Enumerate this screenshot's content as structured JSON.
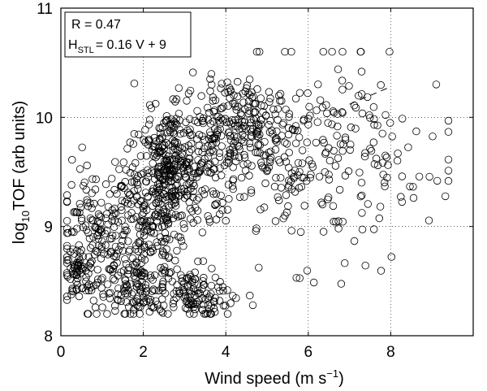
{
  "chart_data": {
    "type": "scatter",
    "xlabel": {
      "main": "Wind speed (m s",
      "superscript": "−1",
      "tail": ")"
    },
    "ylabel": {
      "prefix": "log",
      "subscript": "10",
      "main": "TOF (arb units)"
    },
    "xlim": [
      0,
      10
    ],
    "ylim": [
      8,
      11
    ],
    "xticks": [
      "0",
      "2",
      "4",
      "6",
      "8"
    ],
    "yticks": [
      "8",
      "9",
      "10",
      "11"
    ],
    "grid": true,
    "legend_placement": "top-left",
    "annotations": {
      "r_value": "R = 0.47",
      "fit_prefix": "H",
      "fit_subscript": "STL",
      "fit_eq": "= 0.16 V + 9"
    },
    "marker": "open-circle",
    "marker_color": "#000000",
    "fit_line": {
      "slope": 0.16,
      "intercept": 9,
      "x_range": [
        7.0,
        8.0
      ]
    },
    "point_clusters": [
      {
        "x_mean": 0.8,
        "x_sd": 0.45,
        "y_mean": 8.85,
        "y_sd": 0.35,
        "count": 170
      },
      {
        "x_mean": 0.4,
        "x_sd": 0.12,
        "y_mean": 8.6,
        "y_sd": 0.08,
        "count": 35
      },
      {
        "x_mean": 1.9,
        "x_sd": 0.35,
        "y_mean": 8.45,
        "y_sd": 0.15,
        "count": 90
      },
      {
        "x_mean": 2.0,
        "x_sd": 0.5,
        "y_mean": 9.0,
        "y_sd": 0.4,
        "count": 190
      },
      {
        "x_mean": 2.6,
        "x_sd": 0.35,
        "y_mean": 9.45,
        "y_sd": 0.3,
        "count": 220
      },
      {
        "x_mean": 3.1,
        "x_sd": 0.35,
        "y_mean": 8.4,
        "y_sd": 0.12,
        "count": 90
      },
      {
        "x_mean": 3.2,
        "x_sd": 0.5,
        "y_mean": 9.6,
        "y_sd": 0.35,
        "count": 130
      },
      {
        "x_mean": 4.0,
        "x_sd": 0.5,
        "y_mean": 9.85,
        "y_sd": 0.25,
        "count": 130
      },
      {
        "x_mean": 4.7,
        "x_sd": 0.3,
        "y_mean": 9.95,
        "y_sd": 0.18,
        "count": 70
      },
      {
        "x_mean": 5.8,
        "x_sd": 0.9,
        "y_mean": 9.6,
        "y_sd": 0.45,
        "count": 190
      },
      {
        "x_mean": 7.7,
        "x_sd": 0.9,
        "y_mean": 9.6,
        "y_sd": 0.45,
        "count": 75
      },
      {
        "x_mean": 3.7,
        "x_sd": 0.4,
        "y_mean": 8.3,
        "y_sd": 0.08,
        "count": 25
      }
    ]
  }
}
